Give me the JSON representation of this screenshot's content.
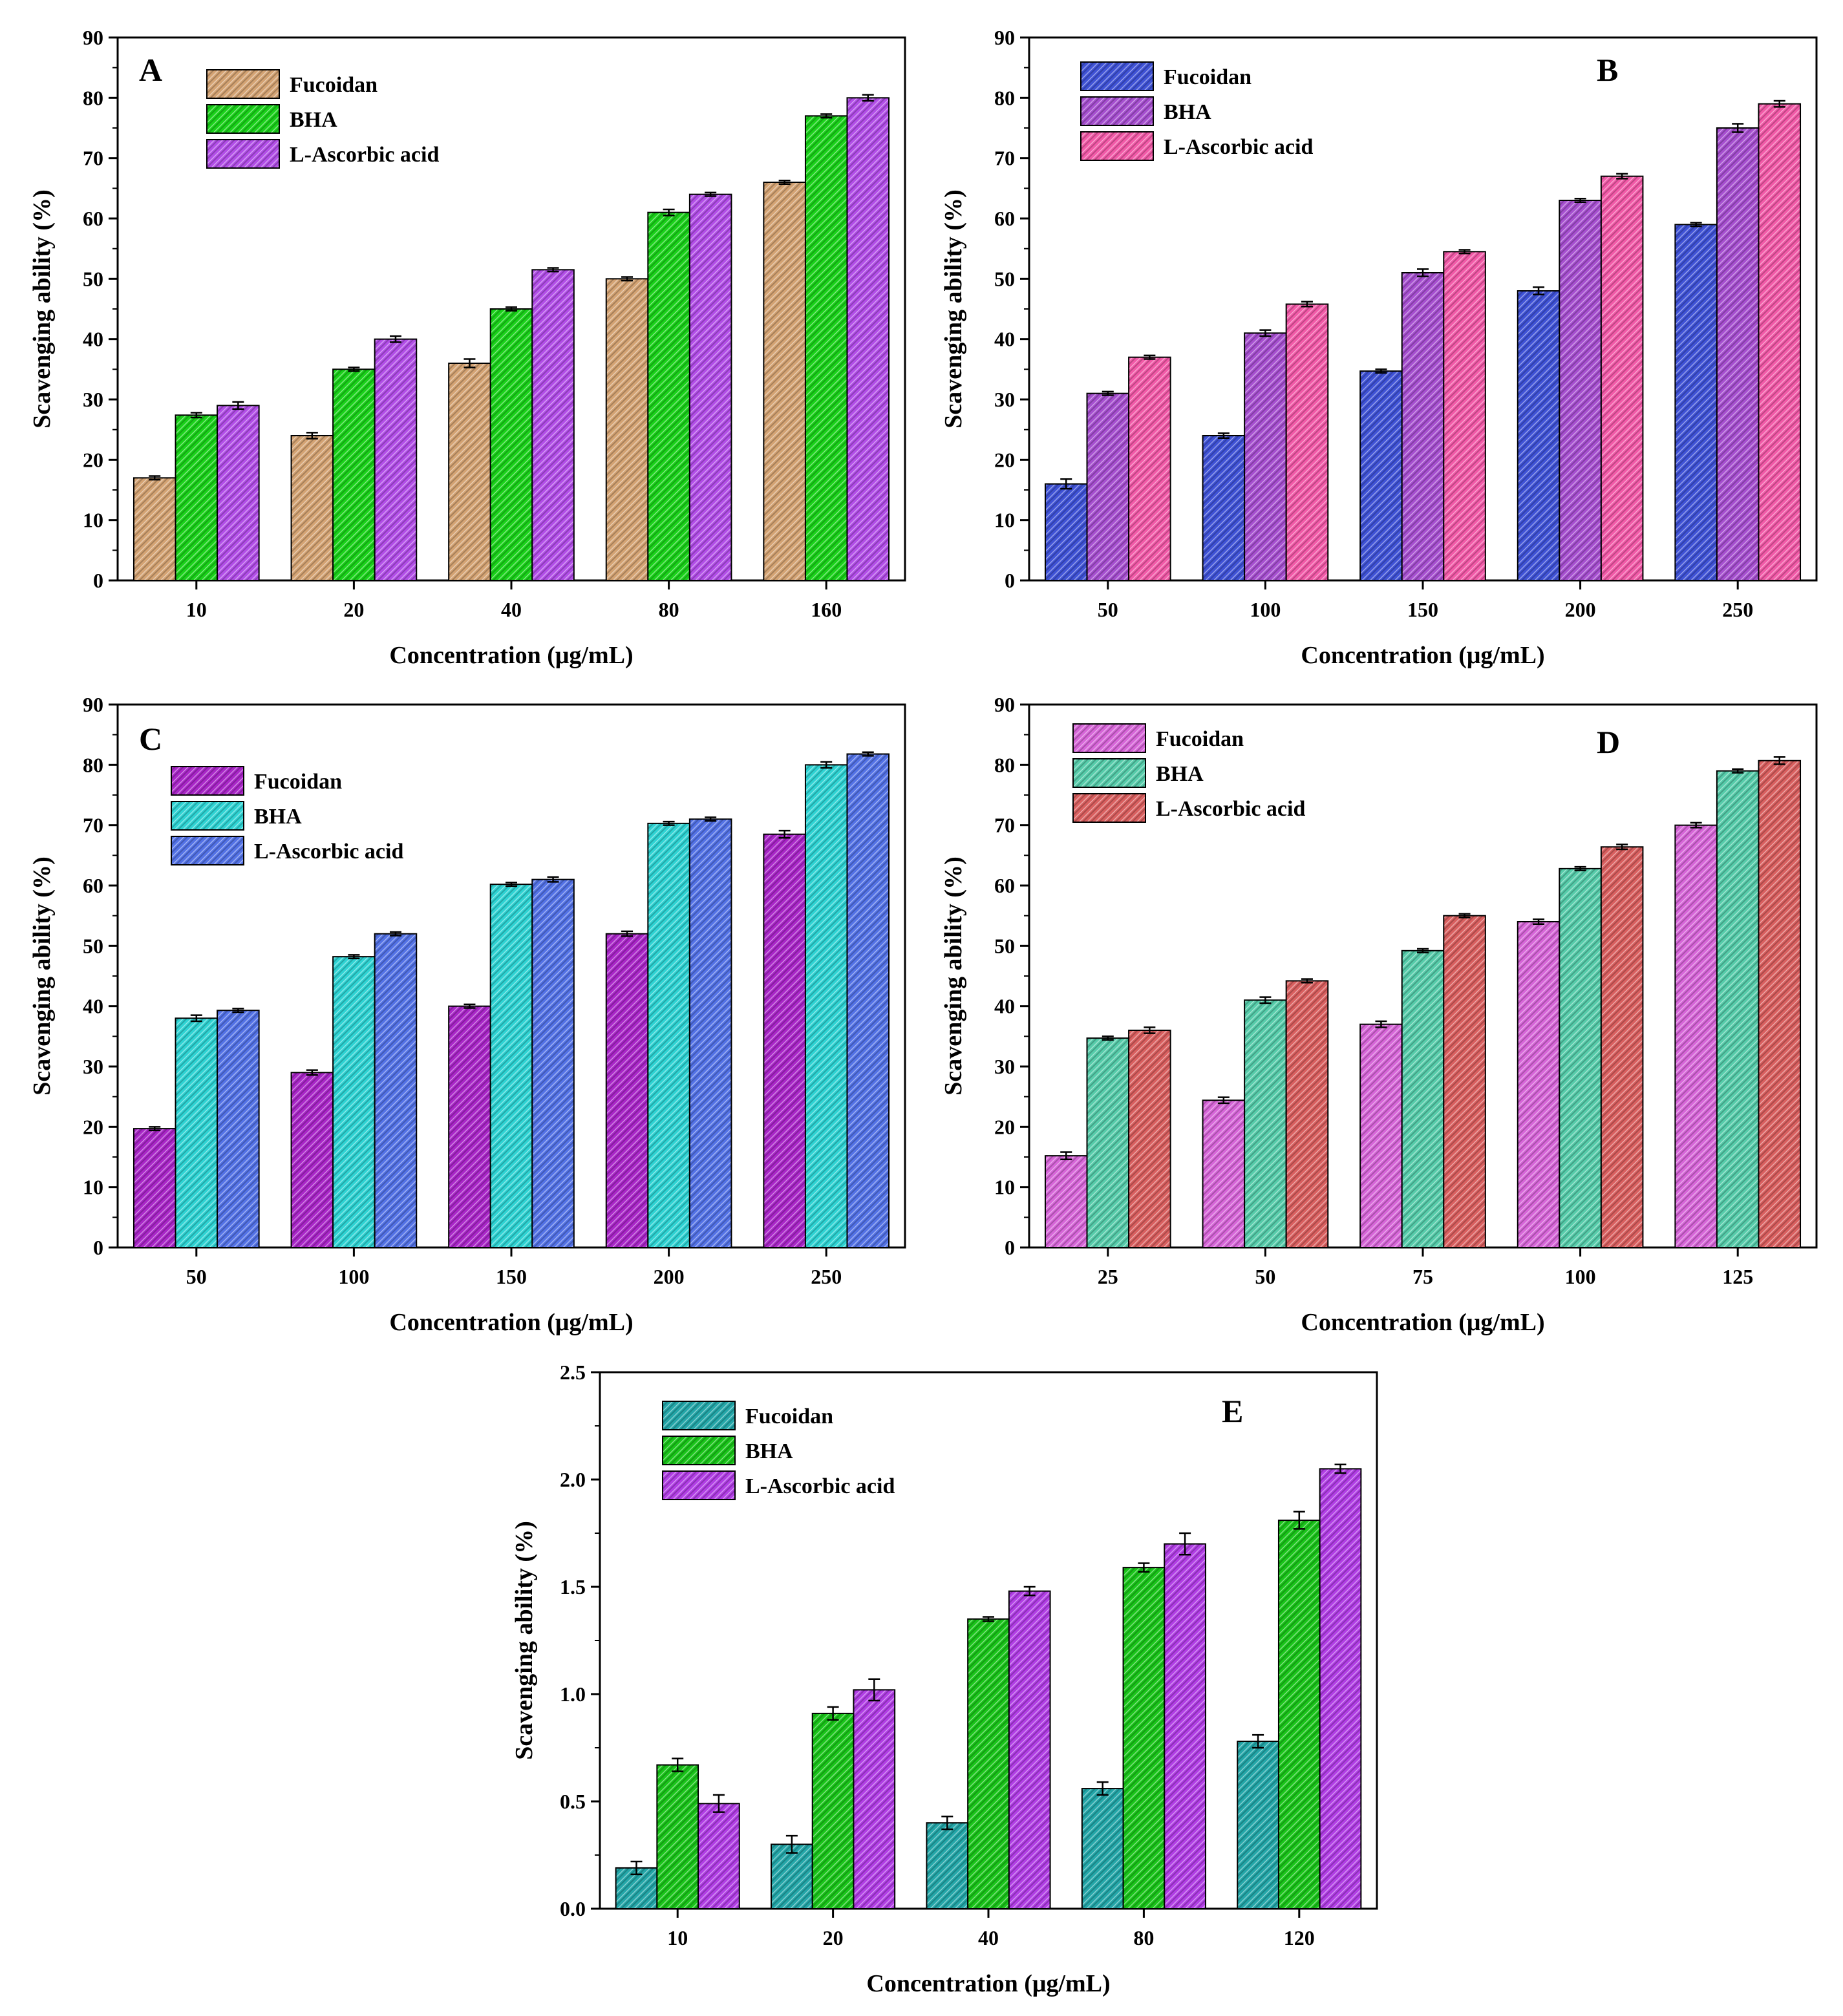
{
  "figure_title": "",
  "chart_data": [
    {
      "panel": "A",
      "type": "bar",
      "xlabel": "Concentration (μg/mL)",
      "ylabel": "Scavenging ability (%)",
      "ylim": [
        0,
        90
      ],
      "yticks": [
        "0",
        "10",
        "20",
        "30",
        "40",
        "50",
        "60",
        "70",
        "80",
        "90"
      ],
      "categories": [
        "10",
        "20",
        "40",
        "80",
        "160"
      ],
      "legend_position": "top-left",
      "series": [
        {
          "name": "Fucoidan",
          "color": "#d4a373",
          "values": [
            17,
            24,
            36,
            50,
            66
          ],
          "errors": [
            0.3,
            0.5,
            0.7,
            0.3,
            0.3
          ]
        },
        {
          "name": "BHA",
          "color": "#19d119",
          "values": [
            27.4,
            35,
            45,
            61,
            77
          ],
          "errors": [
            0.4,
            0.3,
            0.3,
            0.5,
            0.3
          ]
        },
        {
          "name": "L-Ascorbic acid",
          "color": "#b24ee8",
          "values": [
            29,
            40,
            51.5,
            64,
            80
          ],
          "errors": [
            0.6,
            0.5,
            0.3,
            0.3,
            0.5
          ]
        }
      ]
    },
    {
      "panel": "B",
      "type": "bar",
      "xlabel": "Concentration (μg/mL)",
      "ylabel": "Scavenging ability (%)",
      "ylim": [
        0,
        90
      ],
      "yticks": [
        "0",
        "10",
        "20",
        "30",
        "40",
        "50",
        "60",
        "70",
        "80",
        "90"
      ],
      "categories": [
        "50",
        "100",
        "150",
        "200",
        "250"
      ],
      "legend_position": "top-left",
      "series": [
        {
          "name": "Fucoidan",
          "color": "#3f52d6",
          "values": [
            16,
            24,
            34.7,
            48,
            59
          ],
          "errors": [
            0.8,
            0.4,
            0.3,
            0.6,
            0.3
          ]
        },
        {
          "name": "BHA",
          "color": "#a64fd0",
          "values": [
            31,
            41,
            51,
            63,
            75
          ],
          "errors": [
            0.3,
            0.5,
            0.6,
            0.3,
            0.7
          ]
        },
        {
          "name": "L-Ascorbic acid",
          "color": "#f25aa8",
          "values": [
            37,
            45.8,
            54.5,
            67,
            79
          ],
          "errors": [
            0.3,
            0.4,
            0.3,
            0.4,
            0.5
          ]
        }
      ]
    },
    {
      "panel": "C",
      "type": "bar",
      "xlabel": "Concentration (μg/mL)",
      "ylabel": "Scavenging ability (%)",
      "ylim": [
        0,
        90
      ],
      "yticks": [
        "0",
        "10",
        "20",
        "30",
        "40",
        "50",
        "60",
        "70",
        "80",
        "90"
      ],
      "categories": [
        "50",
        "100",
        "150",
        "200",
        "250"
      ],
      "legend_position": "top-left",
      "series": [
        {
          "name": "Fucoidan",
          "color": "#a926c8",
          "values": [
            19.7,
            29,
            40,
            52,
            68.5
          ],
          "errors": [
            0.3,
            0.4,
            0.3,
            0.4,
            0.6
          ]
        },
        {
          "name": "BHA",
          "color": "#2ed3d3",
          "values": [
            38,
            48.2,
            60.2,
            70.3,
            80
          ],
          "errors": [
            0.5,
            0.3,
            0.3,
            0.3,
            0.5
          ]
        },
        {
          "name": "L-Ascorbic acid",
          "color": "#5372e6",
          "values": [
            39.3,
            52,
            61,
            71,
            81.8
          ],
          "errors": [
            0.3,
            0.3,
            0.4,
            0.3,
            0.3
          ]
        }
      ]
    },
    {
      "panel": "D",
      "type": "bar",
      "xlabel": "Concentration (μg/mL)",
      "ylabel": "Scavenging ability (%)",
      "ylim": [
        0,
        90
      ],
      "yticks": [
        "0",
        "10",
        "20",
        "30",
        "40",
        "50",
        "60",
        "70",
        "80",
        "90"
      ],
      "categories": [
        "25",
        "50",
        "75",
        "100",
        "125"
      ],
      "legend_position": "top-left",
      "series": [
        {
          "name": "Fucoidan",
          "color": "#d766d9",
          "values": [
            15.2,
            24.4,
            37,
            54,
            70
          ],
          "errors": [
            0.6,
            0.5,
            0.5,
            0.4,
            0.4
          ]
        },
        {
          "name": "BHA",
          "color": "#56ccaa",
          "values": [
            34.7,
            41,
            49.2,
            62.8,
            79
          ],
          "errors": [
            0.3,
            0.5,
            0.3,
            0.3,
            0.3
          ]
        },
        {
          "name": "L-Ascorbic acid",
          "color": "#d95f5f",
          "values": [
            36,
            44.2,
            55,
            66.4,
            80.7
          ],
          "errors": [
            0.5,
            0.3,
            0.3,
            0.4,
            0.6
          ]
        }
      ]
    },
    {
      "panel": "E",
      "type": "bar",
      "xlabel": "Concentration (μg/mL)",
      "ylabel": "Scavenging ability (%)",
      "ylim": [
        0,
        2.5
      ],
      "yticks": [
        "0.0",
        "0.5",
        "1.0",
        "1.5",
        "2.0",
        "2.5"
      ],
      "categories": [
        "10",
        "20",
        "40",
        "80",
        "120"
      ],
      "legend_position": "top-left",
      "series": [
        {
          "name": "Fucoidan",
          "color": "#23a6a8",
          "values": [
            0.19,
            0.3,
            0.4,
            0.56,
            0.78
          ],
          "errors": [
            0.03,
            0.04,
            0.03,
            0.03,
            0.03
          ]
        },
        {
          "name": "BHA",
          "color": "#19c419",
          "values": [
            0.67,
            0.91,
            1.35,
            1.59,
            1.81
          ],
          "errors": [
            0.03,
            0.03,
            0.01,
            0.02,
            0.04
          ]
        },
        {
          "name": "L-Ascorbic acid",
          "color": "#b13ee5",
          "values": [
            0.49,
            1.02,
            1.48,
            1.7,
            2.05
          ],
          "errors": [
            0.04,
            0.05,
            0.02,
            0.05,
            0.02
          ]
        }
      ]
    }
  ]
}
